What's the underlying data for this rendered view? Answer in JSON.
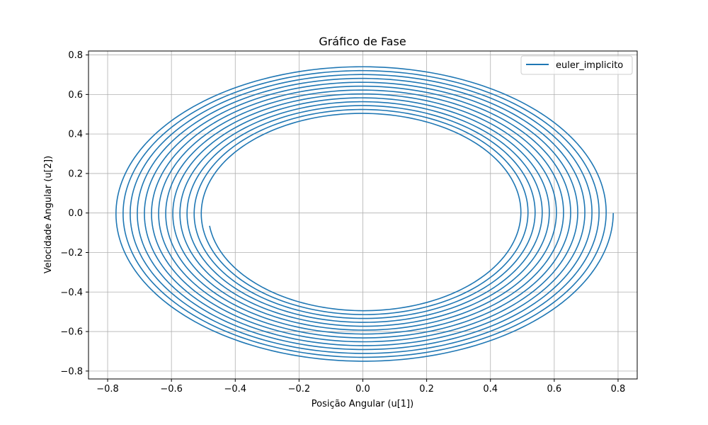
{
  "chart_data": {
    "type": "line",
    "title": "Gráfico de Fase",
    "xlabel": "Posição Angular (u[1])",
    "ylabel": "Velocidade Angular (u[2])",
    "xlim": [
      -0.86,
      0.86
    ],
    "ylim": [
      -0.84,
      0.82
    ],
    "x_ticks": [
      -0.8,
      -0.6,
      -0.4,
      -0.2,
      0.0,
      0.2,
      0.4,
      0.6,
      0.8
    ],
    "x_tick_labels": [
      "−0.8",
      "−0.6",
      "−0.4",
      "−0.2",
      "0.0",
      "0.2",
      "0.4",
      "0.6",
      "0.8"
    ],
    "y_ticks": [
      -0.8,
      -0.6,
      -0.4,
      -0.2,
      0.0,
      0.2,
      0.4,
      0.6,
      0.8
    ],
    "y_tick_labels": [
      "−0.8",
      "−0.6",
      "−0.4",
      "−0.2",
      "0.0",
      "0.2",
      "0.4",
      "0.6",
      "0.8"
    ],
    "grid": true,
    "legend_position": "top-right",
    "series": [
      {
        "name": "euler_implicito",
        "color": "#1f77b4",
        "kind": "damped phase spiral",
        "start": [
          0.785,
          0.0
        ],
        "end": [
          -0.48,
          0.065
        ],
        "turns": 13.3,
        "initial_velocity_amplitude": 0.755,
        "final_velocity_amplitude": 0.49
      }
    ]
  }
}
